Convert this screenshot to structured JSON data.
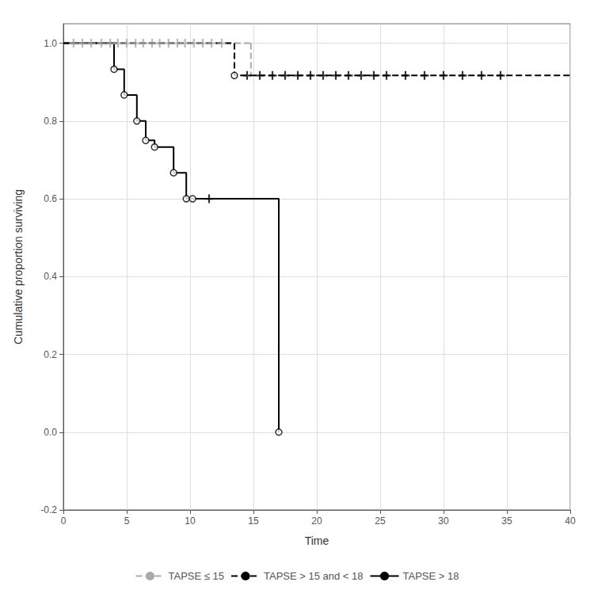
{
  "chart_data": {
    "type": "line",
    "xlabel": "Time",
    "ylabel": "Cumulative proportion surviving",
    "xlim": [
      0,
      40
    ],
    "ylim": [
      -0.2,
      1.05
    ],
    "xticks": [
      0,
      5,
      10,
      15,
      20,
      25,
      30,
      35,
      40
    ],
    "yticks": [
      -0.2,
      {
        "value": 0.0,
        "label": "0.0"
      },
      0.2,
      0.4,
      0.6,
      0.8,
      {
        "value": 1.0,
        "label": "1.0"
      }
    ],
    "grid": true,
    "legend": "bottom",
    "series": [
      {
        "name": "TAPSE ≤ 15",
        "color": "#aaaaaa",
        "line_style": "dashed",
        "x": [
          0,
          15.0
        ],
        "values": [
          1.0,
          1.0
        ],
        "censor_x": [
          0.8,
          1.5,
          2.2,
          3.0,
          3.7,
          4.3,
          5.0,
          5.7,
          6.3,
          7.0,
          7.6,
          8.3,
          9.0,
          9.6,
          10.3,
          11.0,
          11.7,
          12.5
        ],
        "censor_values": [
          1.0,
          1.0,
          1.0,
          1.0,
          1.0,
          1.0,
          1.0,
          1.0,
          1.0,
          1.0,
          1.0,
          1.0,
          1.0,
          1.0,
          1.0,
          1.0,
          1.0,
          1.0
        ],
        "drop_x": [
          14.8,
          14.8
        ],
        "drop_values": [
          1.0,
          0.917
        ]
      },
      {
        "name": "TAPSE > 15 and < 18",
        "color": "#000000",
        "line_style": "dashed",
        "x": [
          0,
          13.5,
          13.5,
          40.0
        ],
        "values": [
          1.0,
          1.0,
          0.917,
          0.917
        ],
        "event_x": [
          13.5
        ],
        "event_values": [
          0.917
        ],
        "censor_x": [
          14.5,
          15.5,
          16.5,
          17.5,
          18.5,
          19.5,
          20.5,
          21.5,
          22.5,
          23.5,
          24.5,
          25.5,
          27.0,
          28.5,
          30.0,
          31.5,
          33.0,
          34.5
        ],
        "censor_values": [
          0.917,
          0.917,
          0.917,
          0.917,
          0.917,
          0.917,
          0.917,
          0.917,
          0.917,
          0.917,
          0.917,
          0.917,
          0.917,
          0.917,
          0.917,
          0.917,
          0.917,
          0.917
        ]
      },
      {
        "name": "TAPSE > 18",
        "color": "#000000",
        "line_style": "solid",
        "x": [
          0,
          4.0,
          4.0,
          4.8,
          4.8,
          5.8,
          5.8,
          6.5,
          6.5,
          7.2,
          7.2,
          8.7,
          8.7,
          9.7,
          9.7,
          10.2,
          10.2,
          17.0,
          17.0
        ],
        "values": [
          1.0,
          1.0,
          0.933,
          0.933,
          0.867,
          0.867,
          0.8,
          0.8,
          0.75,
          0.75,
          0.733,
          0.733,
          0.667,
          0.667,
          0.6,
          0.6,
          0.6,
          0.6,
          0.0
        ],
        "event_x": [
          4.0,
          4.8,
          5.8,
          6.5,
          7.2,
          8.7,
          9.7,
          10.2,
          17.0
        ],
        "event_values": [
          0.933,
          0.867,
          0.8,
          0.75,
          0.733,
          0.667,
          0.6,
          0.6,
          0.0
        ],
        "censor_x": [
          11.5
        ],
        "censor_values": [
          0.6
        ]
      }
    ]
  }
}
